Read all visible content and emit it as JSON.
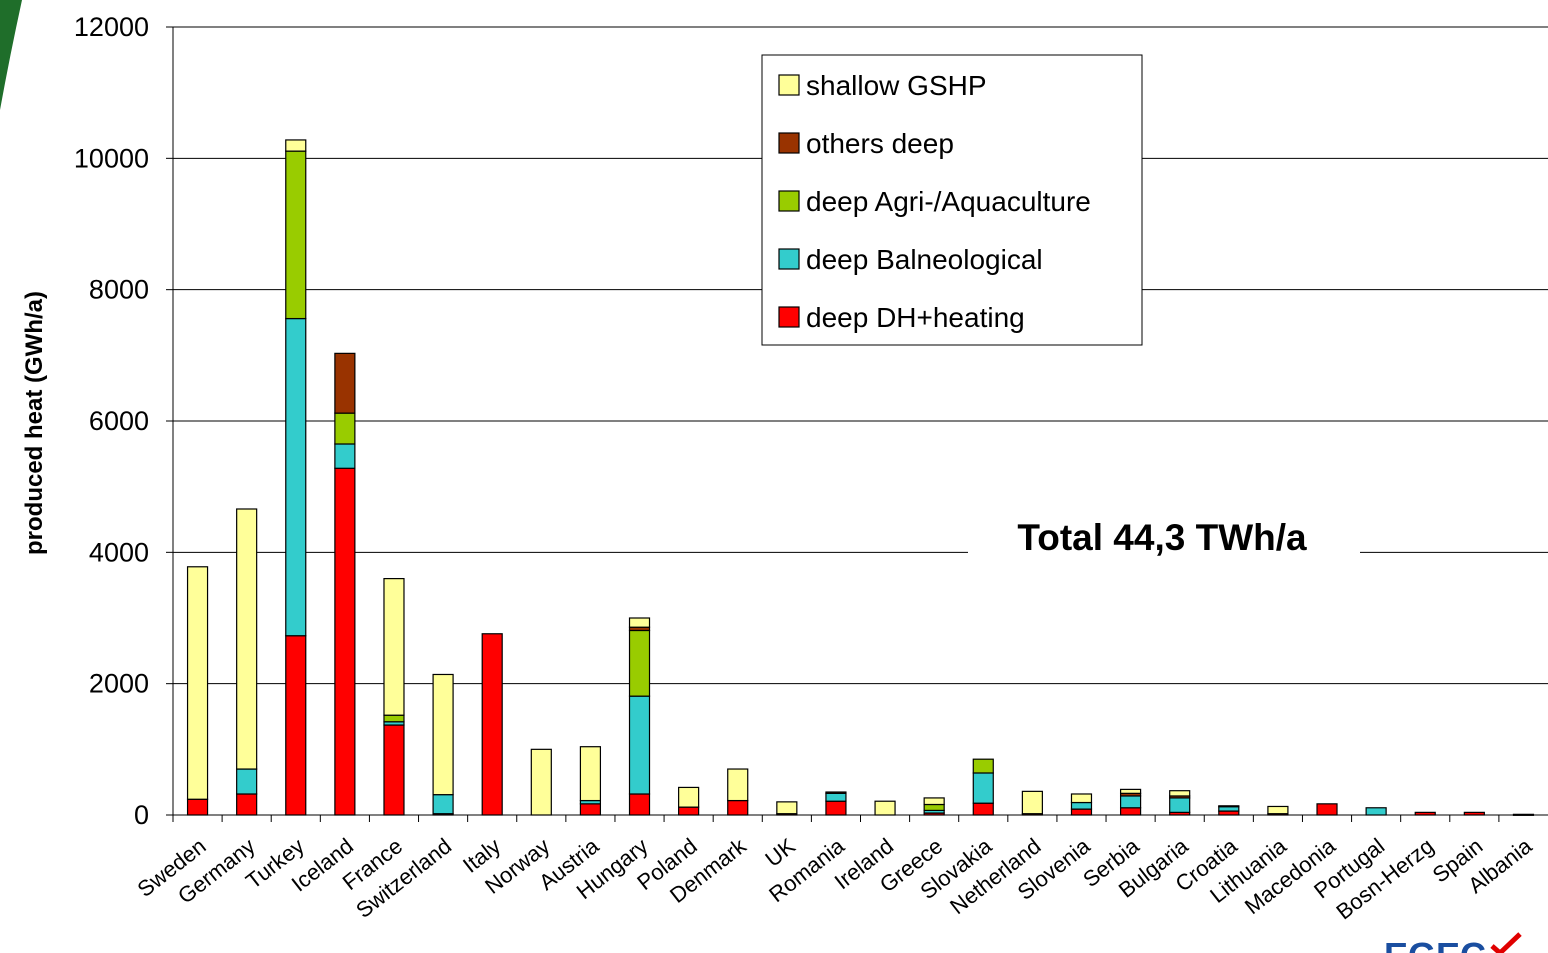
{
  "chart_data": {
    "type": "bar",
    "stacked": true,
    "title": "",
    "xlabel": "",
    "ylabel": "produced heat (GWh/a)",
    "ylim": [
      0,
      12000
    ],
    "yticks": [
      0,
      2000,
      4000,
      6000,
      8000,
      10000,
      12000
    ],
    "grid": "horizontal",
    "legend_position": "top-center",
    "annotation": "Total 44,3 TWh/a",
    "categories": [
      "Sweden",
      "Germany",
      "Turkey",
      "Iceland",
      "France",
      "Switzerland",
      "Italy",
      "Norway",
      "Austria",
      "Hungary",
      "Poland",
      "Denmark",
      "UK",
      "Romania",
      "Ireland",
      "Greece",
      "Slovakia",
      "Netherland",
      "Slovenia",
      "Serbia",
      "Bulgaria",
      "Croatia",
      "Lithuania",
      "Macedonia",
      "Portugal",
      "Bosn-Herzg",
      "Spain",
      "Albania"
    ],
    "series": [
      {
        "name": "deep DH+heating",
        "color": "#ff0000",
        "values": [
          240,
          320,
          2730,
          5280,
          1370,
          20,
          2760,
          0,
          170,
          320,
          120,
          220,
          20,
          210,
          0,
          30,
          180,
          20,
          90,
          110,
          40,
          60,
          20,
          170,
          0,
          40,
          40,
          0
        ]
      },
      {
        "name": "deep Balneological",
        "color": "#33cccc",
        "values": [
          0,
          380,
          4830,
          370,
          50,
          290,
          0,
          0,
          50,
          1490,
          0,
          0,
          0,
          120,
          0,
          40,
          460,
          0,
          100,
          180,
          220,
          70,
          0,
          0,
          110,
          0,
          0,
          10
        ]
      },
      {
        "name": "deep Agri-/Aquaculture",
        "color": "#99cc00",
        "values": [
          0,
          0,
          2550,
          470,
          100,
          0,
          0,
          0,
          0,
          1000,
          0,
          0,
          0,
          0,
          0,
          90,
          210,
          0,
          0,
          0,
          0,
          0,
          0,
          0,
          0,
          0,
          0,
          0
        ]
      },
      {
        "name": "others deep",
        "color": "#993300",
        "values": [
          0,
          0,
          0,
          910,
          0,
          0,
          0,
          0,
          0,
          50,
          0,
          0,
          0,
          20,
          0,
          0,
          0,
          0,
          0,
          40,
          30,
          0,
          0,
          0,
          0,
          0,
          0,
          0
        ]
      },
      {
        "name": "shallow GSHP",
        "color": "#ffff99",
        "values": [
          3540,
          3960,
          170,
          0,
          2080,
          1830,
          0,
          1000,
          820,
          140,
          300,
          480,
          180,
          0,
          210,
          100,
          0,
          340,
          130,
          60,
          80,
          10,
          110,
          0,
          0,
          0,
          0,
          0
        ]
      }
    ]
  },
  "logo_text": "EGEC",
  "colors": {
    "logo_blue": "#1a4ea0",
    "logo_red": "#e00000",
    "corner_green": "#1f6e2a"
  }
}
